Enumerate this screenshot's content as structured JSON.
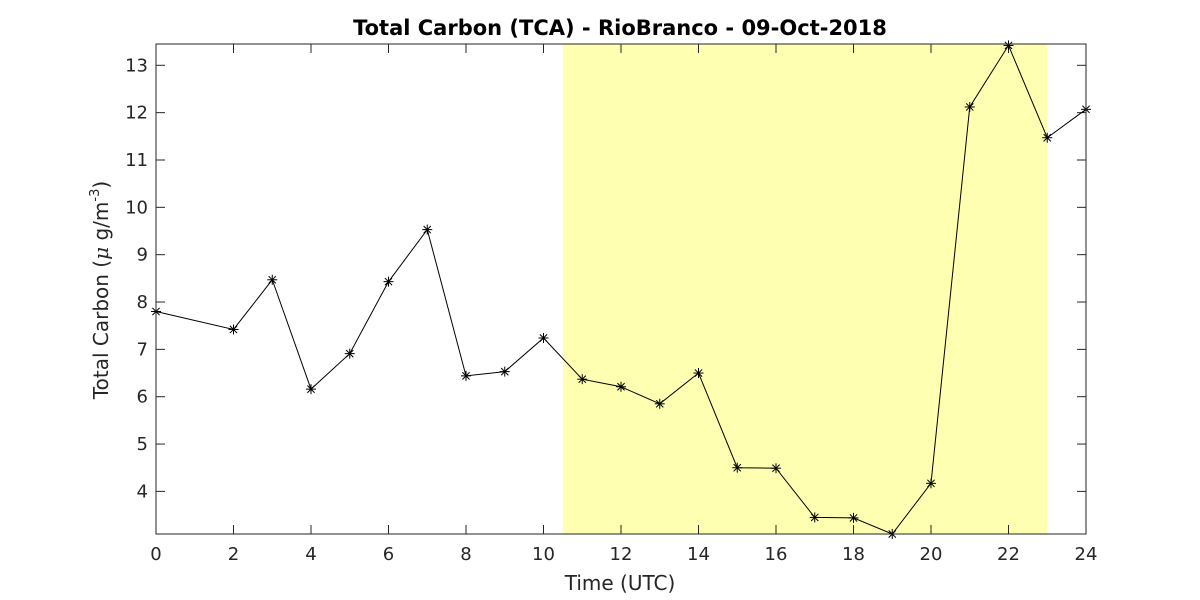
{
  "chart_data": {
    "type": "line",
    "title": "Total Carbon (TCA) - RioBranco - 09-Oct-2018",
    "xlabel": "Time (UTC)",
    "ylabel": {
      "prefix": "Total Carbon (",
      "greek": "μ",
      "unit": " g/m",
      "superscript": "-3",
      "suffix": ")"
    },
    "xlim": [
      0,
      24
    ],
    "ylim": [
      3.1,
      13.45
    ],
    "xticks": [
      "0",
      "2",
      "4",
      "6",
      "8",
      "10",
      "12",
      "14",
      "16",
      "18",
      "20",
      "22",
      "24"
    ],
    "yticks": [
      "4",
      "5",
      "6",
      "7",
      "8",
      "9",
      "10",
      "11",
      "12",
      "13"
    ],
    "highlight_span": [
      10.5,
      23
    ],
    "highlight_color": "#ffffb2",
    "line_color": "#000000",
    "marker": "asterisk",
    "grid": false,
    "series": [
      {
        "x": [
          0,
          2,
          3,
          4,
          5,
          6,
          7,
          8,
          9,
          10,
          11,
          12,
          13,
          14,
          15,
          16,
          17,
          18,
          19,
          20,
          21,
          22,
          23,
          24
        ],
        "values": [
          7.8,
          7.42,
          8.47,
          6.16,
          6.91,
          8.43,
          9.53,
          6.44,
          6.53,
          7.24,
          6.37,
          6.21,
          5.85,
          6.5,
          4.5,
          4.49,
          3.45,
          3.44,
          3.1,
          4.17,
          12.12,
          13.42,
          11.47,
          12.07
        ]
      }
    ]
  }
}
